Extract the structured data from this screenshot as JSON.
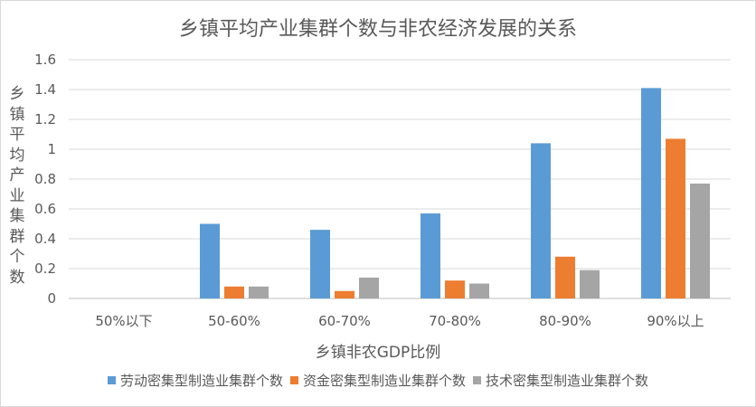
{
  "chart_data": {
    "type": "bar",
    "title": "乡镇平均产业集群个数与非农经济发展的关系",
    "xlabel": "乡镇非农GDP比例",
    "ylabel": "乡镇平均产业集群个数",
    "categories": [
      "50%以下",
      "50-60%",
      "60-70%",
      "70-80%",
      "80-90%",
      "90%以上"
    ],
    "ylim": [
      0,
      1.6
    ],
    "yticks": [
      "0",
      "0.2",
      "0.4",
      "0.6",
      "0.8",
      "1",
      "1.2",
      "1.4",
      "1.6"
    ],
    "grid": true,
    "legend_position": "bottom",
    "series": [
      {
        "name": "劳动密集型制造业集群个数",
        "color": "#5b9bd5",
        "values": [
          0,
          0.5,
          0.46,
          0.57,
          1.04,
          1.41
        ]
      },
      {
        "name": "资金密集型制造业集群个数",
        "color": "#ed7d31",
        "values": [
          0,
          0.08,
          0.05,
          0.12,
          0.28,
          1.07
        ]
      },
      {
        "name": "技术密集型制造业集群个数",
        "color": "#a5a5a5",
        "values": [
          0,
          0.08,
          0.14,
          0.1,
          0.19,
          0.77
        ]
      }
    ]
  }
}
